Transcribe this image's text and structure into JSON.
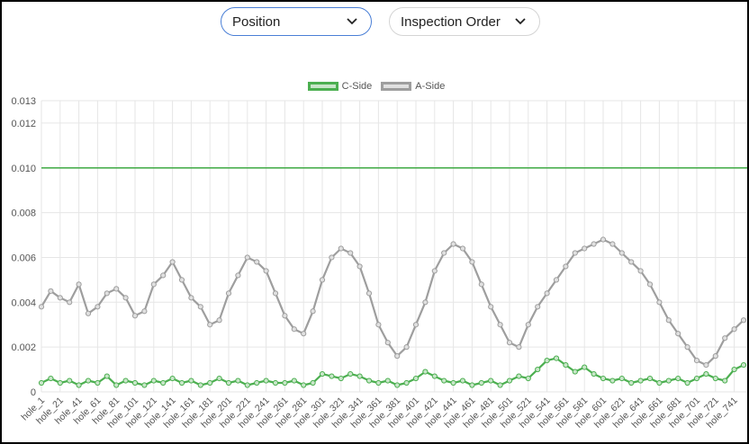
{
  "controls": {
    "position_select": {
      "value": "Position"
    },
    "order_select": {
      "value": "Inspection Order"
    }
  },
  "colors": {
    "c_side": "#4caf50",
    "a_side": "#9e9e9e",
    "grid": "#e6e6e6"
  },
  "chart_data": {
    "type": "line",
    "title": "",
    "xlabel": "",
    "ylabel": "",
    "ylim": [
      0,
      0.013
    ],
    "yticks": [
      "0",
      "0.002",
      "0.004",
      "0.006",
      "0.008",
      "0.010",
      "0.012",
      "0.013"
    ],
    "ytick_values": [
      0,
      0.002,
      0.004,
      0.006,
      0.008,
      0.01,
      0.012,
      0.013
    ],
    "xticks": [
      "hole_1",
      "hole_21",
      "hole_41",
      "hole_61",
      "hole_81",
      "hole_101",
      "hole_121",
      "hole_141",
      "hole_161",
      "hole_181",
      "hole_201",
      "hole_221",
      "hole_241",
      "hole_261",
      "hole_281",
      "hole_301",
      "hole_321",
      "hole_341",
      "hole_361",
      "hole_381",
      "hole_401",
      "hole_421",
      "hole_441",
      "hole_461",
      "hole_481",
      "hole_501",
      "hole_521",
      "hole_541",
      "hole_561",
      "hole_581",
      "hole_601",
      "hole_621",
      "hole_641",
      "hole_661",
      "hole_681",
      "hole_701",
      "hole_721",
      "hole_741"
    ],
    "grid": true,
    "legend_position": "top-center",
    "series": [
      {
        "name": "C-Side",
        "reference_line": 0.01,
        "x": [
          "hole_1",
          "hole_11",
          "hole_21",
          "hole_31",
          "hole_41",
          "hole_51",
          "hole_61",
          "hole_71",
          "hole_81",
          "hole_91",
          "hole_101",
          "hole_111",
          "hole_121",
          "hole_131",
          "hole_141",
          "hole_151",
          "hole_161",
          "hole_171",
          "hole_181",
          "hole_191",
          "hole_201",
          "hole_211",
          "hole_221",
          "hole_231",
          "hole_241",
          "hole_251",
          "hole_261",
          "hole_271",
          "hole_281",
          "hole_291",
          "hole_301",
          "hole_311",
          "hole_321",
          "hole_331",
          "hole_341",
          "hole_351",
          "hole_361",
          "hole_371",
          "hole_381",
          "hole_391",
          "hole_401",
          "hole_411",
          "hole_421",
          "hole_431",
          "hole_441",
          "hole_451",
          "hole_461",
          "hole_471",
          "hole_481",
          "hole_491",
          "hole_501",
          "hole_511",
          "hole_521",
          "hole_531",
          "hole_541",
          "hole_551",
          "hole_561",
          "hole_571",
          "hole_581",
          "hole_591",
          "hole_601",
          "hole_611",
          "hole_621",
          "hole_631",
          "hole_641",
          "hole_651",
          "hole_661",
          "hole_671",
          "hole_681",
          "hole_691",
          "hole_701",
          "hole_711",
          "hole_721",
          "hole_731",
          "hole_741",
          "hole_751"
        ],
        "values": [
          0.0004,
          0.0006,
          0.0004,
          0.0005,
          0.0003,
          0.0005,
          0.0004,
          0.0007,
          0.0003,
          0.0005,
          0.0004,
          0.0003,
          0.0005,
          0.0004,
          0.0006,
          0.0004,
          0.0005,
          0.0003,
          0.0004,
          0.0006,
          0.0004,
          0.0005,
          0.0003,
          0.0004,
          0.0005,
          0.0004,
          0.0004,
          0.0005,
          0.0003,
          0.0004,
          0.0008,
          0.0007,
          0.0006,
          0.0008,
          0.0007,
          0.0005,
          0.0004,
          0.0005,
          0.0003,
          0.0004,
          0.0006,
          0.0009,
          0.0007,
          0.0005,
          0.0004,
          0.0005,
          0.0003,
          0.0004,
          0.0005,
          0.0003,
          0.0005,
          0.0007,
          0.0006,
          0.001,
          0.0014,
          0.0015,
          0.0012,
          0.0009,
          0.0011,
          0.0008,
          0.0006,
          0.0005,
          0.0006,
          0.0004,
          0.0005,
          0.0006,
          0.0004,
          0.0005,
          0.0006,
          0.0004,
          0.0006,
          0.0008,
          0.0006,
          0.0005,
          0.001,
          0.0012
        ]
      },
      {
        "name": "A-Side",
        "x": [
          "hole_1",
          "hole_11",
          "hole_21",
          "hole_31",
          "hole_41",
          "hole_51",
          "hole_61",
          "hole_71",
          "hole_81",
          "hole_91",
          "hole_101",
          "hole_111",
          "hole_121",
          "hole_131",
          "hole_141",
          "hole_151",
          "hole_161",
          "hole_171",
          "hole_181",
          "hole_191",
          "hole_201",
          "hole_211",
          "hole_221",
          "hole_231",
          "hole_241",
          "hole_251",
          "hole_261",
          "hole_271",
          "hole_281",
          "hole_291",
          "hole_301",
          "hole_311",
          "hole_321",
          "hole_331",
          "hole_341",
          "hole_351",
          "hole_361",
          "hole_371",
          "hole_381",
          "hole_391",
          "hole_401",
          "hole_411",
          "hole_421",
          "hole_431",
          "hole_441",
          "hole_451",
          "hole_461",
          "hole_471",
          "hole_481",
          "hole_491",
          "hole_501",
          "hole_511",
          "hole_521",
          "hole_531",
          "hole_541",
          "hole_551",
          "hole_561",
          "hole_571",
          "hole_581",
          "hole_591",
          "hole_601",
          "hole_611",
          "hole_621",
          "hole_631",
          "hole_641",
          "hole_651",
          "hole_661",
          "hole_671",
          "hole_681",
          "hole_691",
          "hole_701",
          "hole_711",
          "hole_721",
          "hole_731",
          "hole_741",
          "hole_751"
        ],
        "values": [
          0.0038,
          0.0045,
          0.0042,
          0.004,
          0.0048,
          0.0035,
          0.0038,
          0.0044,
          0.0046,
          0.0042,
          0.0034,
          0.0036,
          0.0048,
          0.0052,
          0.0058,
          0.005,
          0.0042,
          0.0038,
          0.003,
          0.0032,
          0.0044,
          0.0052,
          0.006,
          0.0058,
          0.0054,
          0.0044,
          0.0034,
          0.0028,
          0.0026,
          0.0036,
          0.005,
          0.006,
          0.0064,
          0.0062,
          0.0056,
          0.0044,
          0.003,
          0.0022,
          0.0016,
          0.002,
          0.003,
          0.004,
          0.0054,
          0.0062,
          0.0066,
          0.0064,
          0.0058,
          0.0048,
          0.0038,
          0.003,
          0.0022,
          0.002,
          0.003,
          0.0038,
          0.0044,
          0.005,
          0.0056,
          0.0062,
          0.0064,
          0.0066,
          0.0068,
          0.0066,
          0.0062,
          0.0058,
          0.0054,
          0.0048,
          0.004,
          0.0032,
          0.0026,
          0.002,
          0.0014,
          0.0012,
          0.0016,
          0.0024,
          0.0028,
          0.0032
        ]
      }
    ]
  }
}
